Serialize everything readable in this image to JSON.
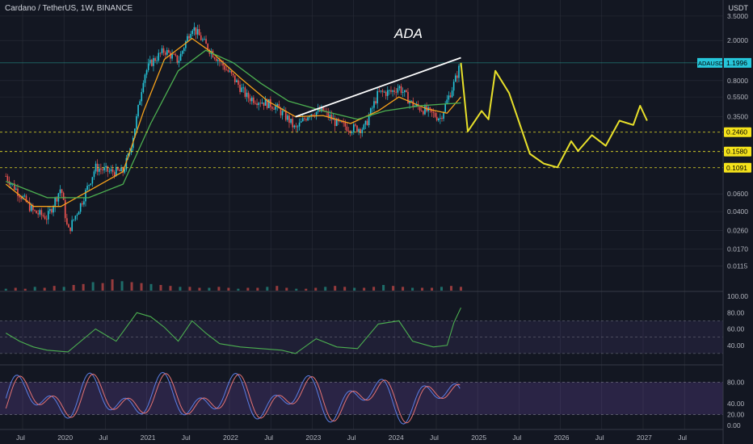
{
  "header": {
    "symbol_line": "Cardano / TetherUS, 1W, BINANCE",
    "currency": "USDT"
  },
  "annotation": "ADA",
  "colors": {
    "bg": "#131722",
    "grid": "#2a2e39",
    "up": "#26c6da",
    "down": "#ef5350",
    "ema_fast": "#f7a21b",
    "ema_slow": "#4caf50",
    "projection": "#e8e02a",
    "trendline": "#ffffff",
    "rsi": "#4caf50",
    "stoch_k": "#5b7ee5",
    "stoch_d": "#e57373"
  },
  "chart_data": [
    {
      "type": "candlestick",
      "scale": "log",
      "symbol": "Cardano / TetherUS",
      "interval": "1W",
      "exchange": "BINANCE",
      "y_ticks": [
        "3.5000",
        "2.0000",
        "1.1996",
        "0.8000",
        "0.5500",
        "0.3500",
        "0.2460",
        "0.1580",
        "0.1091",
        "0.0600",
        "0.0400",
        "0.0260",
        "0.0170",
        "0.0115"
      ],
      "x_ticks": [
        "Jul",
        "2020",
        "Jul",
        "2021",
        "Jul",
        "2022",
        "Jul",
        "2023",
        "Jul",
        "2024",
        "Jul",
        "2025",
        "Jul",
        "2026",
        "Jul",
        "2027",
        "Jul"
      ],
      "price_label": {
        "name": "ADAUSDT",
        "value": "1.1996"
      },
      "levels": [
        {
          "value": "0.2460"
        },
        {
          "value": "0.1580"
        },
        {
          "value": "0.1091"
        }
      ],
      "price_path": [
        [
          "2019-06",
          0.09
        ],
        [
          "2019-08",
          0.06
        ],
        [
          "2019-10",
          0.04
        ],
        [
          "2019-12",
          0.035
        ],
        [
          "2020-02",
          0.07
        ],
        [
          "2020-03",
          0.025
        ],
        [
          "2020-05",
          0.05
        ],
        [
          "2020-07",
          0.11
        ],
        [
          "2020-09",
          0.1
        ],
        [
          "2020-11",
          0.1
        ],
        [
          "2020-12",
          0.16
        ],
        [
          "2021-01",
          0.35
        ],
        [
          "2021-02",
          0.9
        ],
        [
          "2021-03",
          1.2
        ],
        [
          "2021-05",
          1.6
        ],
        [
          "2021-07",
          1.25
        ],
        [
          "2021-09",
          2.8
        ],
        [
          "2021-11",
          1.8
        ],
        [
          "2022-01",
          1.25
        ],
        [
          "2022-03",
          0.85
        ],
        [
          "2022-05",
          0.55
        ],
        [
          "2022-07",
          0.5
        ],
        [
          "2022-09",
          0.45
        ],
        [
          "2022-11",
          0.33
        ],
        [
          "2022-12",
          0.26
        ],
        [
          "2023-02",
          0.38
        ],
        [
          "2023-04",
          0.4
        ],
        [
          "2023-06",
          0.3
        ],
        [
          "2023-08",
          0.27
        ],
        [
          "2023-10",
          0.27
        ],
        [
          "2023-12",
          0.6
        ],
        [
          "2024-02",
          0.62
        ],
        [
          "2024-03",
          0.7
        ],
        [
          "2024-05",
          0.46
        ],
        [
          "2024-07",
          0.4
        ],
        [
          "2024-09",
          0.34
        ],
        [
          "2024-11",
          0.75
        ],
        [
          "2024-12",
          1.2
        ]
      ],
      "ema_fast": [
        [
          "2019-06",
          0.075
        ],
        [
          "2019-10",
          0.045
        ],
        [
          "2020-02",
          0.045
        ],
        [
          "2020-07",
          0.07
        ],
        [
          "2020-11",
          0.1
        ],
        [
          "2021-02",
          0.4
        ],
        [
          "2021-05",
          1.3
        ],
        [
          "2021-09",
          2.1
        ],
        [
          "2021-12",
          1.5
        ],
        [
          "2022-04",
          0.85
        ],
        [
          "2022-08",
          0.5
        ],
        [
          "2022-12",
          0.35
        ],
        [
          "2023-04",
          0.36
        ],
        [
          "2023-08",
          0.3
        ],
        [
          "2023-12",
          0.4
        ],
        [
          "2024-03",
          0.55
        ],
        [
          "2024-07",
          0.42
        ],
        [
          "2024-10",
          0.38
        ],
        [
          "2024-12",
          0.55
        ]
      ],
      "ema_slow": [
        [
          "2019-06",
          0.08
        ],
        [
          "2019-12",
          0.055
        ],
        [
          "2020-06",
          0.055
        ],
        [
          "2020-11",
          0.075
        ],
        [
          "2021-03",
          0.3
        ],
        [
          "2021-07",
          1.0
        ],
        [
          "2021-11",
          1.6
        ],
        [
          "2022-03",
          1.2
        ],
        [
          "2022-07",
          0.75
        ],
        [
          "2022-11",
          0.5
        ],
        [
          "2023-04",
          0.4
        ],
        [
          "2023-09",
          0.33
        ],
        [
          "2024-01",
          0.4
        ],
        [
          "2024-06",
          0.45
        ],
        [
          "2024-12",
          0.48
        ]
      ],
      "trendline": [
        [
          "2022-12",
          0.35
        ],
        [
          "2024-12",
          1.35
        ]
      ],
      "projection": [
        [
          "2024-12",
          1.2
        ],
        [
          "2025-01",
          0.25
        ],
        [
          "2025-03",
          0.4
        ],
        [
          "2025-04",
          0.33
        ],
        [
          "2025-05",
          1.0
        ],
        [
          "2025-07",
          0.6
        ],
        [
          "2025-08",
          0.38
        ],
        [
          "2025-10",
          0.15
        ],
        [
          "2025-12",
          0.12
        ],
        [
          "2026-02",
          0.11
        ],
        [
          "2026-04",
          0.2
        ],
        [
          "2026-05",
          0.16
        ],
        [
          "2026-07",
          0.23
        ],
        [
          "2026-09",
          0.18
        ],
        [
          "2026-11",
          0.32
        ],
        [
          "2027-01",
          0.29
        ],
        [
          "2027-02",
          0.45
        ],
        [
          "2027-03",
          0.32
        ]
      ]
    },
    {
      "type": "bar",
      "name": "volume",
      "values": [
        2,
        3,
        2,
        4,
        3,
        5,
        4,
        6,
        7,
        9,
        8,
        12,
        10,
        9,
        8,
        7,
        6,
        5,
        4,
        4,
        3,
        3,
        4,
        3,
        2,
        3,
        3,
        4,
        5,
        3,
        2,
        2,
        3,
        4,
        5,
        4,
        3,
        3,
        4,
        6,
        5,
        4,
        3,
        3,
        3,
        4,
        5,
        4
      ]
    },
    {
      "type": "line",
      "name": "RSI",
      "y_ticks": [
        "100.00",
        "80.00",
        "60.00",
        "40.00"
      ],
      "values": [
        [
          "2019-06",
          55
        ],
        [
          "2019-08",
          45
        ],
        [
          "2019-10",
          38
        ],
        [
          "2019-12",
          34
        ],
        [
          "2020-03",
          32
        ],
        [
          "2020-07",
          60
        ],
        [
          "2020-10",
          45
        ],
        [
          "2021-01",
          80
        ],
        [
          "2021-03",
          75
        ],
        [
          "2021-05",
          62
        ],
        [
          "2021-07",
          45
        ],
        [
          "2021-09",
          70
        ],
        [
          "2021-11",
          55
        ],
        [
          "2022-01",
          42
        ],
        [
          "2022-04",
          38
        ],
        [
          "2022-07",
          36
        ],
        [
          "2022-10",
          34
        ],
        [
          "2022-12",
          30
        ],
        [
          "2023-03",
          48
        ],
        [
          "2023-06",
          38
        ],
        [
          "2023-09",
          36
        ],
        [
          "2023-12",
          66
        ],
        [
          "2024-03",
          70
        ],
        [
          "2024-05",
          45
        ],
        [
          "2024-08",
          38
        ],
        [
          "2024-10",
          40
        ],
        [
          "2024-11",
          68
        ],
        [
          "2024-12",
          86
        ]
      ]
    },
    {
      "type": "line",
      "name": "Stochastic RSI",
      "y_ticks": [
        "80.00",
        "40.00",
        "20.00",
        "0.00"
      ]
    }
  ]
}
